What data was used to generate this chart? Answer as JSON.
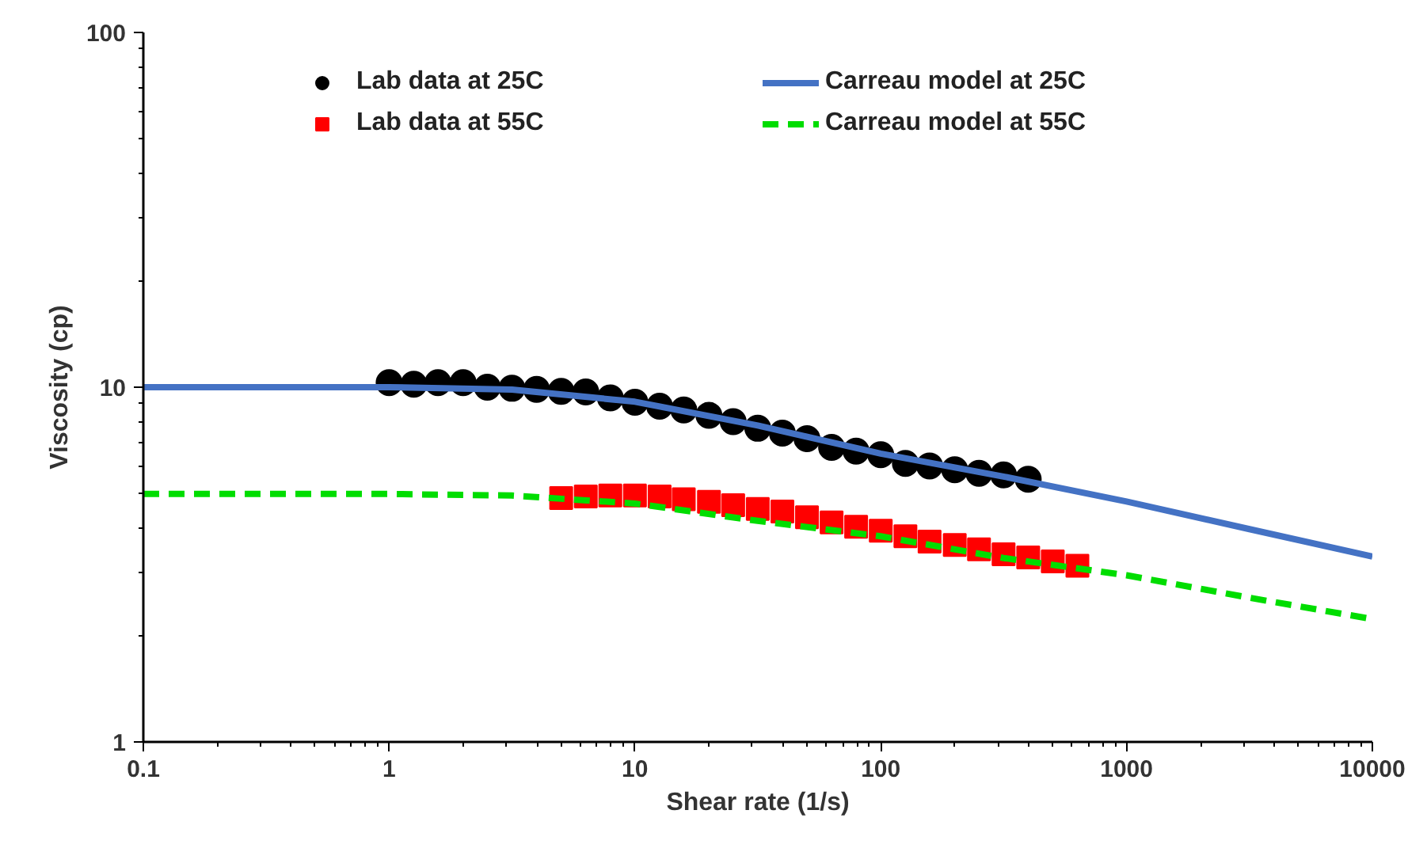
{
  "chart_data": {
    "type": "scatter",
    "xlabel": "Shear rate (1/s)",
    "ylabel": "Viscosity (cp)",
    "log": "xy",
    "xlim": [
      0.1,
      10000
    ],
    "ylim": [
      1,
      100
    ],
    "xticks": [
      0.1,
      1,
      10,
      100,
      1000,
      10000
    ],
    "yticks": [
      1,
      10,
      100
    ],
    "grid": false,
    "legend": "top",
    "series": [
      {
        "name": "Lab data at 25C",
        "marker": "circle",
        "color": "#000000",
        "x": [
          1,
          1.26,
          1.58,
          2,
          2.51,
          3.16,
          3.98,
          5.01,
          6.31,
          7.94,
          10,
          12.6,
          15.8,
          20,
          25.1,
          31.6,
          39.8,
          50.1,
          63.1,
          79.4,
          100,
          126,
          158,
          200,
          251,
          316,
          398
        ],
        "values": [
          10.3,
          10.2,
          10.3,
          10.3,
          10.0,
          9.93,
          9.86,
          9.73,
          9.7,
          9.33,
          9.07,
          8.84,
          8.63,
          8.33,
          8.0,
          7.66,
          7.42,
          7.16,
          6.77,
          6.6,
          6.45,
          6.1,
          6.0,
          5.85,
          5.72,
          5.66,
          5.5
        ]
      },
      {
        "name": "Lab data at 55C",
        "marker": "square",
        "color": "#ff0000",
        "x": [
          5.01,
          6.31,
          7.94,
          10,
          12.6,
          15.8,
          20,
          25.1,
          31.6,
          39.8,
          50.1,
          63.1,
          79.4,
          100,
          126,
          158,
          200,
          251,
          316,
          398,
          501,
          631
        ],
        "values": [
          4.87,
          4.92,
          4.95,
          4.95,
          4.92,
          4.83,
          4.75,
          4.65,
          4.54,
          4.46,
          4.3,
          4.16,
          4.04,
          3.94,
          3.8,
          3.67,
          3.59,
          3.49,
          3.38,
          3.31,
          3.23,
          3.14
        ]
      },
      {
        "name": "Carreau model at 25C",
        "type": "line",
        "line_style": "solid",
        "color": "#4472c4",
        "x": [
          0.1,
          0.316,
          1,
          3.16,
          10,
          31.6,
          100,
          316,
          1000,
          3162,
          10000
        ],
        "values": [
          10,
          10,
          10,
          9.85,
          9.1,
          7.8,
          6.5,
          5.6,
          4.76,
          3.98,
          3.33
        ]
      },
      {
        "name": "Carreau model at 55C",
        "type": "line",
        "line_style": "dashed",
        "color": "#00dd00",
        "x": [
          0.1,
          0.316,
          1,
          3.16,
          10,
          31.6,
          100,
          316,
          1000,
          3162,
          10000
        ],
        "values": [
          5,
          5,
          5,
          4.95,
          4.7,
          4.2,
          3.8,
          3.3,
          2.95,
          2.55,
          2.22
        ]
      }
    ]
  }
}
